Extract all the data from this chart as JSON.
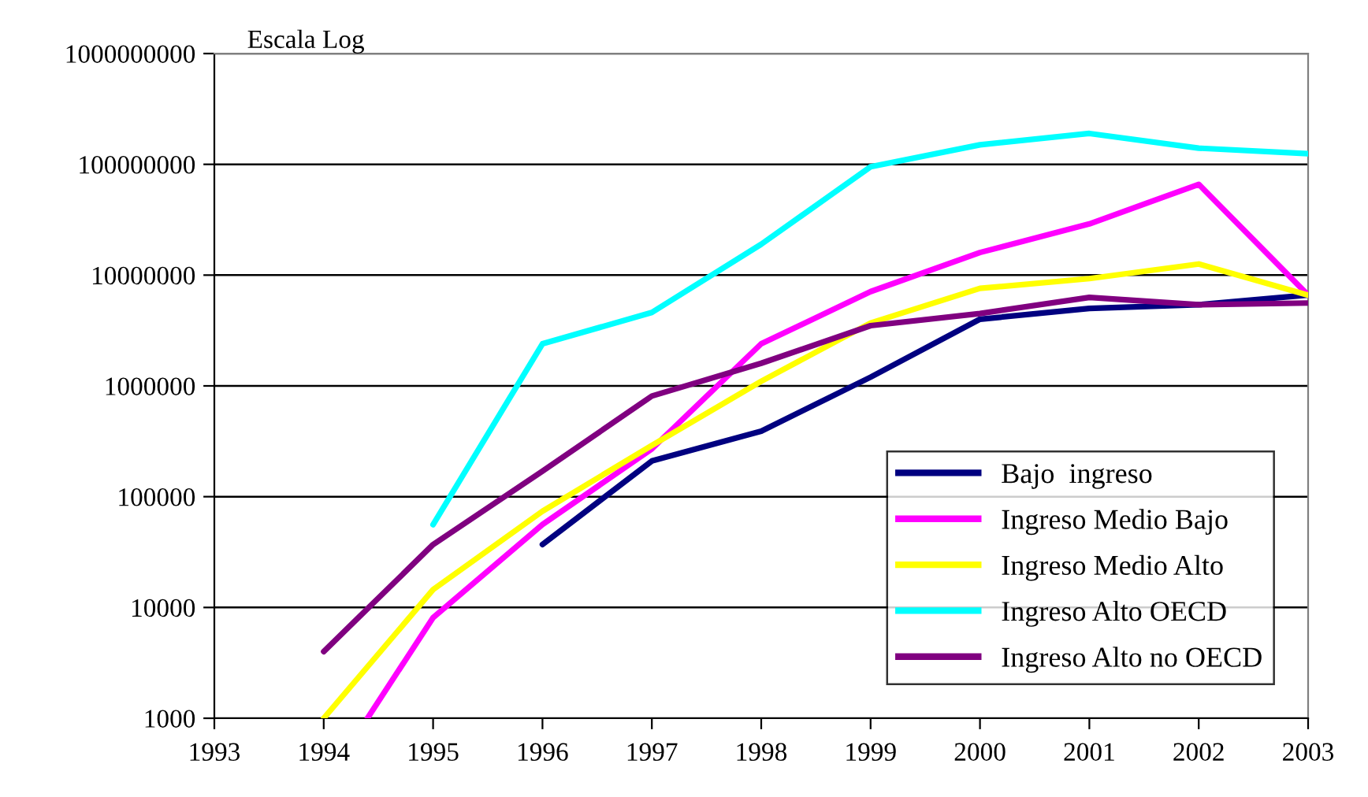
{
  "chart_data": {
    "type": "line",
    "annotations": [
      "Escala Log"
    ],
    "log": true,
    "grid": "y",
    "legend": "bottom right",
    "xlim": [
      1993,
      2003
    ],
    "xticks": [
      1993,
      1994,
      1995,
      1996,
      1997,
      1998,
      1999,
      2000,
      2001,
      2002,
      2003
    ],
    "ylim": [
      1000,
      1000000000
    ],
    "yticks": [
      1000,
      10000,
      100000,
      1000000,
      10000000,
      100000000,
      1000000000
    ],
    "series": [
      {
        "name": "Bajo  ingreso",
        "color": "#000080",
        "x": [
          1996,
          1997,
          1998,
          1999,
          2000,
          2001,
          2002,
          2003
        ],
        "values": [
          37000,
          210000,
          390000,
          1200000,
          4000000,
          5000000,
          5400000,
          6600000
        ]
      },
      {
        "name": "Ingreso Medio Bajo",
        "color": "#ff00ff",
        "x": [
          1994.4,
          1995,
          1996,
          1997,
          1998,
          1999,
          2000,
          2001,
          2002,
          2003
        ],
        "values": [
          1000,
          8100,
          56000,
          270000,
          2400000,
          7100000,
          16000000,
          29000000,
          66000000,
          6600000
        ]
      },
      {
        "name": "Ingreso Medio Alto",
        "color": "#ffff00",
        "x": [
          1994,
          1995,
          1996,
          1997,
          1998,
          1999,
          2000,
          2001,
          2002,
          2003
        ],
        "values": [
          1000,
          14500,
          74000,
          290000,
          1100000,
          3700000,
          7600000,
          9300000,
          12600000,
          6600000
        ]
      },
      {
        "name": "Ingreso Alto OECD",
        "color": "#00ffff",
        "x": [
          1995,
          1996,
          1997,
          1998,
          1999,
          2000,
          2001,
          2002,
          2003
        ],
        "values": [
          56000,
          2400000,
          4600000,
          19000000,
          95000000,
          150000000,
          190000000,
          140000000,
          125000000
        ]
      },
      {
        "name": "Ingreso Alto no OECD",
        "color": "#800080",
        "x": [
          1994,
          1995,
          1996,
          1997,
          1998,
          1999,
          2000,
          2001,
          2002,
          2003
        ],
        "values": [
          4000,
          37000,
          170000,
          810000,
          1600000,
          3500000,
          4500000,
          6300000,
          5400000,
          5600000
        ]
      }
    ]
  }
}
